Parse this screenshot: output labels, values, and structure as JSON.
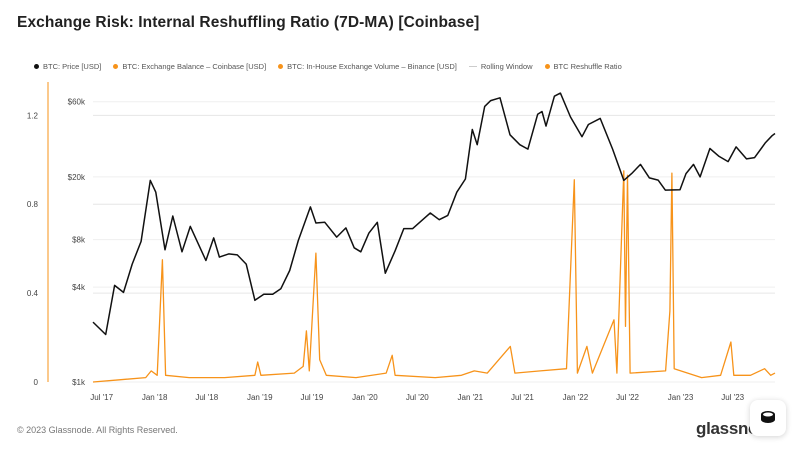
{
  "page": {
    "title": "Exchange Risk: Internal Reshuffling Ratio (7D-MA) [Coinbase]",
    "footer": "© 2023 Glassnode. All Rights Reserved.",
    "brand": "glassnode"
  },
  "legend": {
    "items": [
      {
        "label": "BTC: Price [USD]",
        "color": "#111111",
        "kind": "dot"
      },
      {
        "label": "BTC: Exchange Balance – Coinbase [USD]",
        "color": "#f7931a",
        "kind": "dot"
      },
      {
        "label": "BTC: In-House Exchange Volume – Binance [USD]",
        "color": "#f7931a",
        "kind": "dot"
      },
      {
        "label": "Rolling Window",
        "color": "#cccccc",
        "kind": "line"
      },
      {
        "label": "BTC Reshuffle Ratio",
        "color": "#f7931a",
        "kind": "dot"
      }
    ]
  },
  "chart_data": {
    "type": "line",
    "title": "Exchange Risk: Internal Reshuffling Ratio (7D-MA) [Coinbase]",
    "x_ticks": [
      "Jul '17",
      "Jan '18",
      "Jul '18",
      "Jan '19",
      "Jul '19",
      "Jan '20",
      "Jul '20",
      "Jan '21",
      "Jul '21",
      "Jan '22",
      "Jul '22",
      "Jan '23",
      "Jul '23"
    ],
    "x_range": [
      "2017-06-01",
      "2023-11-25"
    ],
    "y_left": {
      "ticks": [
        0,
        0.4,
        0.8,
        1.2
      ],
      "range": [
        0,
        1.35
      ],
      "scale": "linear"
    },
    "y_right": {
      "tick_labels": [
        "$1k",
        "$4k",
        "$8k",
        "$20k",
        "$60k"
      ],
      "tick_values": [
        1000,
        4000,
        8000,
        20000,
        60000
      ],
      "range": [
        1000,
        80000
      ],
      "scale": "log"
    },
    "grid": true,
    "legend_position": "top",
    "colors": {
      "price": "#111111",
      "ratio": "#f7931a",
      "axis_left": "#f7931a"
    },
    "series": [
      {
        "name": "BTC: Price [USD]",
        "axis": "right",
        "points": [
          [
            "2017-06-01",
            2400
          ],
          [
            "2017-07-15",
            2000
          ],
          [
            "2017-08-15",
            4100
          ],
          [
            "2017-09-15",
            3700
          ],
          [
            "2017-10-15",
            5600
          ],
          [
            "2017-11-15",
            7800
          ],
          [
            "2017-12-17",
            19000
          ],
          [
            "2018-01-05",
            16000
          ],
          [
            "2018-02-06",
            6900
          ],
          [
            "2018-03-05",
            11300
          ],
          [
            "2018-04-06",
            6700
          ],
          [
            "2018-05-05",
            9700
          ],
          [
            "2018-06-28",
            5900
          ],
          [
            "2018-07-25",
            8200
          ],
          [
            "2018-08-14",
            6200
          ],
          [
            "2018-09-15",
            6500
          ],
          [
            "2018-10-15",
            6400
          ],
          [
            "2018-11-15",
            5600
          ],
          [
            "2018-12-15",
            3300
          ],
          [
            "2019-01-15",
            3600
          ],
          [
            "2019-02-15",
            3600
          ],
          [
            "2019-03-15",
            3900
          ],
          [
            "2019-04-15",
            5100
          ],
          [
            "2019-05-15",
            7900
          ],
          [
            "2019-06-26",
            12900
          ],
          [
            "2019-07-15",
            10200
          ],
          [
            "2019-08-15",
            10300
          ],
          [
            "2019-09-25",
            8300
          ],
          [
            "2019-10-27",
            9500
          ],
          [
            "2019-11-25",
            7100
          ],
          [
            "2019-12-18",
            6700
          ],
          [
            "2020-01-15",
            8800
          ],
          [
            "2020-02-13",
            10300
          ],
          [
            "2020-03-12",
            4900
          ],
          [
            "2020-04-15",
            6800
          ],
          [
            "2020-05-15",
            9400
          ],
          [
            "2020-06-15",
            9400
          ],
          [
            "2020-07-27",
            11000
          ],
          [
            "2020-08-15",
            11800
          ],
          [
            "2020-09-15",
            10700
          ],
          [
            "2020-10-15",
            11400
          ],
          [
            "2020-11-15",
            16000
          ],
          [
            "2020-12-15",
            19400
          ],
          [
            "2021-01-08",
            40000
          ],
          [
            "2021-01-25",
            32000
          ],
          [
            "2021-02-20",
            56000
          ],
          [
            "2021-03-13",
            61000
          ],
          [
            "2021-04-14",
            63500
          ],
          [
            "2021-05-19",
            37000
          ],
          [
            "2021-06-22",
            32000
          ],
          [
            "2021-07-20",
            30000
          ],
          [
            "2021-08-23",
            50000
          ],
          [
            "2021-09-07",
            52000
          ],
          [
            "2021-09-21",
            42000
          ],
          [
            "2021-10-20",
            65000
          ],
          [
            "2021-11-10",
            68000
          ],
          [
            "2021-12-15",
            48000
          ],
          [
            "2022-01-24",
            36000
          ],
          [
            "2022-02-15",
            43000
          ],
          [
            "2022-03-28",
            47000
          ],
          [
            "2022-05-10",
            30000
          ],
          [
            "2022-06-18",
            19000
          ],
          [
            "2022-07-15",
            21000
          ],
          [
            "2022-08-15",
            24000
          ],
          [
            "2022-09-15",
            19700
          ],
          [
            "2022-10-15",
            19100
          ],
          [
            "2022-11-09",
            16500
          ],
          [
            "2022-12-30",
            16600
          ],
          [
            "2023-01-20",
            21000
          ],
          [
            "2023-02-15",
            24000
          ],
          [
            "2023-03-10",
            20000
          ],
          [
            "2023-04-13",
            30300
          ],
          [
            "2023-05-15",
            27000
          ],
          [
            "2023-06-15",
            25000
          ],
          [
            "2023-07-13",
            31000
          ],
          [
            "2023-08-18",
            26000
          ],
          [
            "2023-09-15",
            26500
          ],
          [
            "2023-10-23",
            33000
          ],
          [
            "2023-11-15",
            36500
          ],
          [
            "2023-11-25",
            37700
          ]
        ]
      },
      {
        "name": "BTC Reshuffle Ratio",
        "axis": "left",
        "points": [
          [
            "2017-06-01",
            0.0
          ],
          [
            "2017-09-01",
            0.01
          ],
          [
            "2017-12-01",
            0.02
          ],
          [
            "2017-12-20",
            0.05
          ],
          [
            "2018-01-10",
            0.03
          ],
          [
            "2018-01-28",
            0.55
          ],
          [
            "2018-02-08",
            0.03
          ],
          [
            "2018-05-01",
            0.02
          ],
          [
            "2018-09-01",
            0.02
          ],
          [
            "2018-12-15",
            0.03
          ],
          [
            "2018-12-25",
            0.09
          ],
          [
            "2019-01-05",
            0.03
          ],
          [
            "2019-05-01",
            0.04
          ],
          [
            "2019-06-01",
            0.07
          ],
          [
            "2019-06-12",
            0.23
          ],
          [
            "2019-06-22",
            0.05
          ],
          [
            "2019-07-15",
            0.58
          ],
          [
            "2019-07-28",
            0.1
          ],
          [
            "2019-08-20",
            0.03
          ],
          [
            "2019-12-01",
            0.02
          ],
          [
            "2020-03-15",
            0.04
          ],
          [
            "2020-04-05",
            0.12
          ],
          [
            "2020-04-15",
            0.03
          ],
          [
            "2020-09-01",
            0.02
          ],
          [
            "2020-12-01",
            0.03
          ],
          [
            "2021-01-15",
            0.05
          ],
          [
            "2021-03-01",
            0.04
          ],
          [
            "2021-05-20",
            0.16
          ],
          [
            "2021-06-05",
            0.04
          ],
          [
            "2021-09-01",
            0.05
          ],
          [
            "2021-12-01",
            0.06
          ],
          [
            "2021-12-28",
            0.91
          ],
          [
            "2022-01-08",
            0.04
          ],
          [
            "2022-02-10",
            0.16
          ],
          [
            "2022-03-01",
            0.04
          ],
          [
            "2022-05-15",
            0.28
          ],
          [
            "2022-05-25",
            0.04
          ],
          [
            "2022-06-18",
            0.95
          ],
          [
            "2022-06-24",
            0.25
          ],
          [
            "2022-07-01",
            0.93
          ],
          [
            "2022-07-10",
            0.04
          ],
          [
            "2022-11-10",
            0.05
          ],
          [
            "2022-11-25",
            0.32
          ],
          [
            "2022-12-02",
            0.94
          ],
          [
            "2022-12-10",
            0.06
          ],
          [
            "2023-03-15",
            0.02
          ],
          [
            "2023-05-20",
            0.03
          ],
          [
            "2023-06-25",
            0.18
          ],
          [
            "2023-07-05",
            0.03
          ],
          [
            "2023-09-01",
            0.03
          ],
          [
            "2023-10-20",
            0.06
          ],
          [
            "2023-11-10",
            0.03
          ],
          [
            "2023-11-25",
            0.04
          ]
        ]
      }
    ]
  }
}
